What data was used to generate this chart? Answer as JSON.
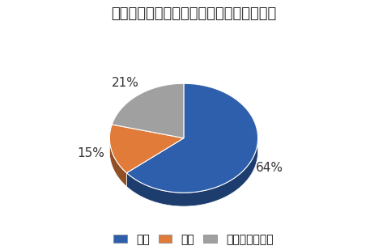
{
  "title": "ムーヴキャンバスの乗り心地の満足度調査",
  "labels": [
    "満足",
    "不満",
    "どちらでもない"
  ],
  "values": [
    64,
    15,
    21
  ],
  "colors": [
    "#2E5FAC",
    "#E07B39",
    "#A0A0A0"
  ],
  "pct_labels": [
    "64%",
    "15%",
    "21%"
  ],
  "legend_labels": [
    "満足",
    "不満",
    "どちらでもない"
  ],
  "startangle": 90,
  "background_color": "#FFFFFF",
  "title_fontsize": 13,
  "label_fontsize": 11,
  "legend_fontsize": 10
}
